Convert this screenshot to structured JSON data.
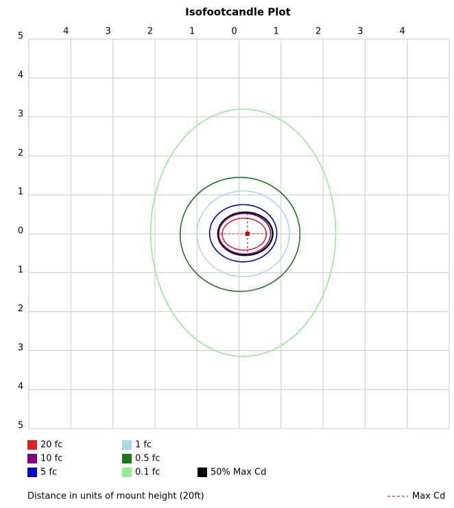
{
  "chart_data": {
    "type": "contour",
    "title": "Isofootcandle Plot",
    "xlabel": "Distance in units of mount height (20ft)",
    "xlim": [
      -5,
      5
    ],
    "ylim": [
      -5,
      5
    ],
    "xticks": [
      {
        "value": -4,
        "label": "4"
      },
      {
        "value": -3,
        "label": "3"
      },
      {
        "value": -2,
        "label": "2"
      },
      {
        "value": -1,
        "label": "1"
      },
      0,
      1,
      2,
      3,
      4
    ],
    "yticks": [
      5,
      4,
      3,
      2,
      1,
      0,
      {
        "value": -1,
        "label": "1"
      },
      {
        "value": -2,
        "label": "2"
      },
      {
        "value": -3,
        "label": "3"
      },
      {
        "value": -4,
        "label": "4"
      },
      {
        "value": -5,
        "label": "5"
      }
    ],
    "grid": true,
    "series": [
      {
        "name": "20 fc",
        "color": "#e02020",
        "x_extent": [
          -0.4,
          0.65
        ],
        "y_extent": [
          -0.42,
          0.4
        ]
      },
      {
        "name": "10 fc",
        "color": "#800080",
        "x_extent": [
          -0.48,
          0.75
        ],
        "y_extent": [
          -0.52,
          0.52
        ]
      },
      {
        "name": "5 fc",
        "color": "#0000cc",
        "x_extent": [
          -0.7,
          0.9
        ],
        "y_extent": [
          -0.72,
          0.75
        ]
      },
      {
        "name": "1 fc",
        "color": "#add8e6",
        "x_extent": [
          -1.0,
          1.2
        ],
        "y_extent": [
          -1.1,
          1.1
        ]
      },
      {
        "name": "0.5 fc",
        "color": "#1a7a1a",
        "x_extent": [
          -1.4,
          1.45
        ],
        "y_extent": [
          -1.48,
          1.45
        ]
      },
      {
        "name": "0.1 fc",
        "color": "#90ee90",
        "x_extent": [
          -2.1,
          2.3
        ],
        "y_extent": [
          -3.15,
          3.2
        ]
      },
      {
        "name": "50% Max Cd",
        "color": "#000000",
        "x_extent": [
          -0.5,
          0.8
        ],
        "y_extent": [
          -0.55,
          0.55
        ]
      }
    ],
    "max_cd": {
      "name": "Max Cd",
      "color": "#cc0000",
      "x": 0.2,
      "y": 0
    }
  }
}
